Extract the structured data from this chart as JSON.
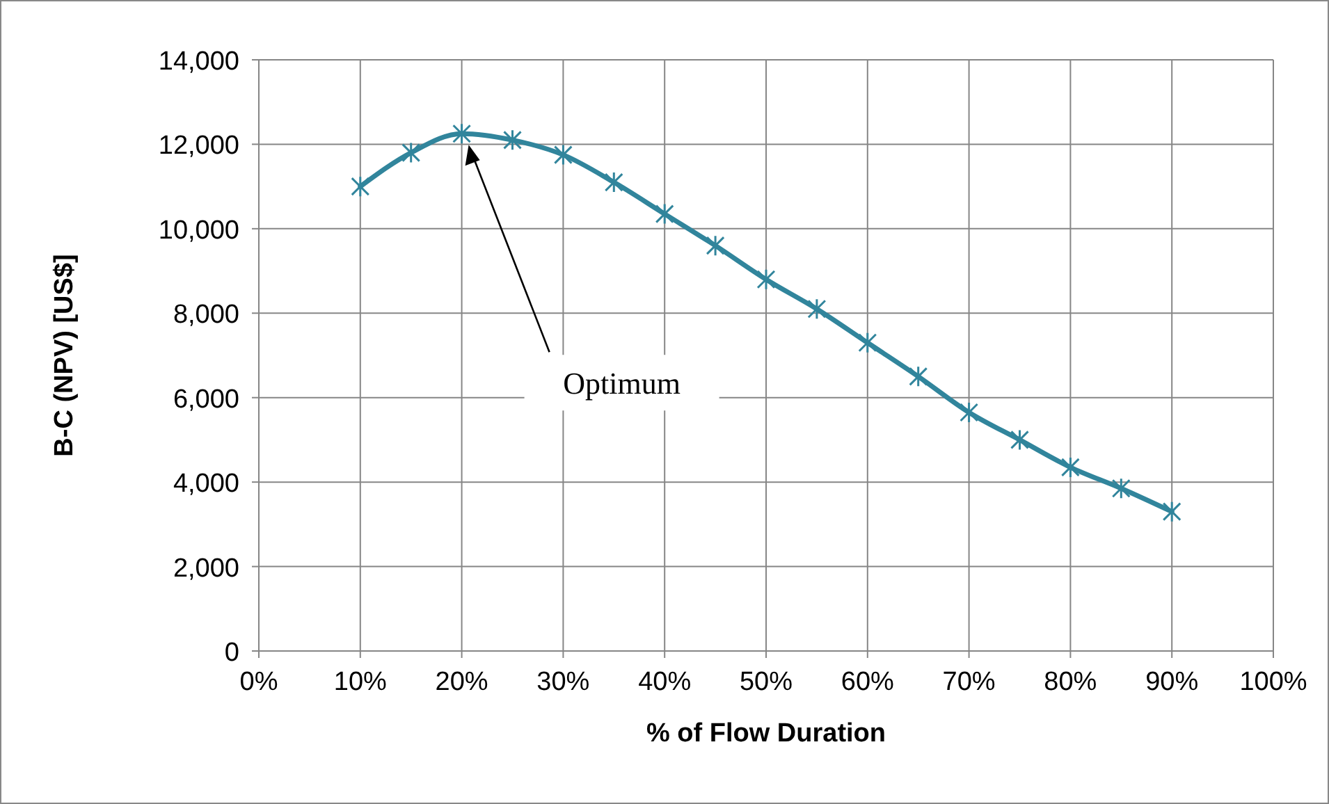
{
  "chart_data": {
    "type": "line",
    "xlabel": "% of Flow Duration",
    "ylabel": "B-C (NPV) [US$]",
    "x": [
      10,
      15,
      20,
      25,
      30,
      35,
      40,
      45,
      50,
      55,
      60,
      65,
      70,
      75,
      80,
      85,
      90
    ],
    "series": [
      {
        "color": "#31859c",
        "values": [
          11000,
          11800,
          12250,
          12100,
          11750,
          11100,
          10350,
          9600,
          8800,
          8100,
          7300,
          6500,
          5650,
          5000,
          4350,
          3850,
          3300
        ]
      }
    ],
    "xlim": [
      0,
      100
    ],
    "xticks": [
      {
        "value": 0,
        "label": "0%"
      },
      {
        "value": 10,
        "label": "10%"
      },
      {
        "value": 20,
        "label": "20%"
      },
      {
        "value": 30,
        "label": "30%"
      },
      {
        "value": 40,
        "label": "40%"
      },
      {
        "value": 50,
        "label": "50%"
      },
      {
        "value": 60,
        "label": "60%"
      },
      {
        "value": 70,
        "label": "70%"
      },
      {
        "value": 80,
        "label": "80%"
      },
      {
        "value": 90,
        "label": "90%"
      },
      {
        "value": 100,
        "label": "100%"
      }
    ],
    "ylim": [
      0,
      14000
    ],
    "yticks": [
      {
        "value": 0,
        "label": "0"
      },
      {
        "value": 2000,
        "label": "2,000"
      },
      {
        "value": 4000,
        "label": "4,000"
      },
      {
        "value": 6000,
        "label": "6,000"
      },
      {
        "value": 8000,
        "label": "8,000"
      },
      {
        "value": 10000,
        "label": "10,000"
      },
      {
        "value": 12000,
        "label": "12,000"
      },
      {
        "value": 14000,
        "label": "14,000"
      }
    ],
    "annotations": [
      "Optimum"
    ],
    "grid": true,
    "marker": "cross",
    "line_style": "solid"
  }
}
